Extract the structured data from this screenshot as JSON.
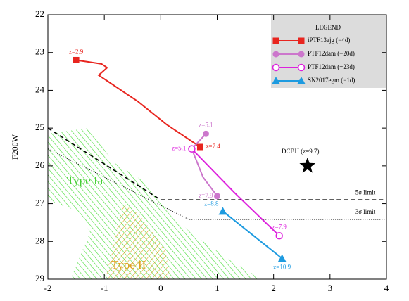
{
  "chart_data": {
    "type": "line",
    "y_label": "F200W",
    "xlim": [
      -2,
      4
    ],
    "xticks": [
      -2,
      -1,
      0,
      1,
      2,
      3,
      4
    ],
    "ylim": [
      22,
      29
    ],
    "yticks": [
      22,
      23,
      24,
      25,
      26,
      27,
      28,
      29
    ],
    "y_inverted": true,
    "legend_title": "LEGEND",
    "legend": "upper right",
    "series": [
      {
        "name": "iPTF13ajg (−4d)",
        "color": "#e8251f",
        "marker": "square",
        "x": [
          -1.5,
          -1.05,
          -0.95,
          -1.1,
          -0.95,
          -0.4,
          0.1,
          0.7
        ],
        "values": [
          23.2,
          23.3,
          23.4,
          23.6,
          23.75,
          24.3,
          24.9,
          25.5
        ],
        "first_label": "z=2.9",
        "last_label": "z=7.4"
      },
      {
        "name": "PTF12dam (−20d)",
        "color": "#cc77cc",
        "marker": "circle",
        "x": [
          0.8,
          0.55,
          0.75,
          1.0
        ],
        "values": [
          25.15,
          25.55,
          26.3,
          26.8
        ],
        "first_label": "z=5.1",
        "last_label": "z=7.9"
      },
      {
        "name": "PTF12dam (+23d)",
        "color": "#dd22dd",
        "marker": "open-circle",
        "x": [
          0.55,
          1.3,
          2.1
        ],
        "values": [
          25.55,
          26.7,
          27.85
        ],
        "first_label": "z=5.1",
        "last_label": "z=7.9"
      },
      {
        "name": "SN2017egm (−1d)",
        "color": "#1e9be0",
        "marker": "triangle",
        "x": [
          1.1,
          2.15
        ],
        "values": [
          27.2,
          28.45
        ],
        "first_label": "z=8.8",
        "last_label": "z=10.9"
      }
    ],
    "limits": [
      {
        "label": "5σ limit",
        "style": "dashed",
        "x": [
          -2,
          0,
          4
        ],
        "values": [
          25.0,
          26.9,
          26.9
        ]
      },
      {
        "label": "3σ limit",
        "style": "dotted",
        "x": [
          -2,
          0.5,
          4
        ],
        "values": [
          25.55,
          27.42,
          27.42
        ]
      }
    ],
    "point": {
      "label": "DCBH (z=9.7)",
      "x": 2.6,
      "y": 26.0
    },
    "regions": [
      "Type Ia",
      "Type II"
    ]
  }
}
